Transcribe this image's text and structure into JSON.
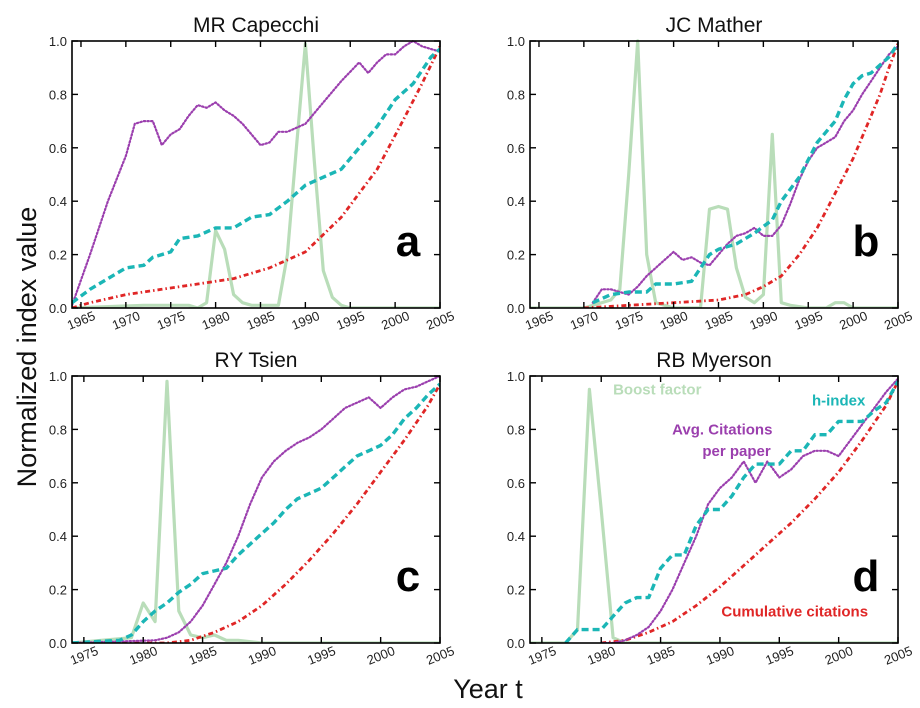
{
  "figure": {
    "ylabel": "Normalized index value",
    "xlabel": "Year t"
  },
  "colors": {
    "boost": "#b9ddb9",
    "hindex": "#1bb6b6",
    "avgcit": "#9b3fae",
    "cumcit": "#e02626"
  },
  "chart_data": [
    {
      "type": "line",
      "title": "MR Capecchi",
      "panel_label": "a",
      "xlim": [
        1964,
        2005
      ],
      "ylim": [
        0,
        1
      ],
      "xticks": [
        1965,
        1970,
        1975,
        1980,
        1985,
        1990,
        1995,
        2000,
        2005
      ],
      "yticks": [
        "0.0",
        "0.2",
        "0.4",
        "0.6",
        "0.8",
        "1.0"
      ],
      "series": [
        {
          "key": "boost",
          "style": "solid",
          "x": [
            1964,
            1972,
            1975,
            1977,
            1978,
            1979,
            1980,
            1981,
            1982,
            1983,
            1984,
            1985,
            1986,
            1987,
            1988,
            1989,
            1990,
            1991,
            1992,
            1993,
            1994,
            1995,
            2005
          ],
          "y": [
            0,
            0.01,
            0.01,
            0.01,
            0,
            0.02,
            0.29,
            0.22,
            0.05,
            0.02,
            0.01,
            0.01,
            0.01,
            0.01,
            0.2,
            0.6,
            0.99,
            0.55,
            0.14,
            0.04,
            0.01,
            0,
            0
          ]
        },
        {
          "key": "hindex",
          "style": "dashed",
          "x": [
            1964,
            1966,
            1968,
            1970,
            1972,
            1973,
            1975,
            1976,
            1978,
            1980,
            1982,
            1984,
            1986,
            1988,
            1990,
            1992,
            1994,
            1996,
            1998,
            2000,
            2002,
            2003,
            2004,
            2005
          ],
          "y": [
            0.02,
            0.07,
            0.11,
            0.15,
            0.16,
            0.19,
            0.21,
            0.26,
            0.27,
            0.3,
            0.3,
            0.34,
            0.35,
            0.4,
            0.46,
            0.49,
            0.52,
            0.6,
            0.68,
            0.78,
            0.84,
            0.89,
            0.94,
            0.97
          ]
        },
        {
          "key": "avgcit",
          "style": "dotted",
          "x": [
            1964,
            1966,
            1968,
            1970,
            1971,
            1972,
            1973,
            1974,
            1975,
            1976,
            1977,
            1978,
            1979,
            1980,
            1981,
            1982,
            1983,
            1984,
            1985,
            1986,
            1987,
            1988,
            1990,
            1992,
            1994,
            1996,
            1997,
            1998,
            1999,
            2000,
            2001,
            2002,
            2003,
            2004,
            2005
          ],
          "y": [
            0.01,
            0.2,
            0.4,
            0.57,
            0.69,
            0.7,
            0.7,
            0.61,
            0.65,
            0.67,
            0.72,
            0.76,
            0.75,
            0.77,
            0.74,
            0.72,
            0.69,
            0.65,
            0.61,
            0.62,
            0.66,
            0.66,
            0.69,
            0.77,
            0.85,
            0.92,
            0.88,
            0.92,
            0.95,
            0.95,
            0.98,
            1.0,
            0.98,
            0.97,
            0.96
          ]
        },
        {
          "key": "cumcit",
          "style": "dashdot",
          "x": [
            1964,
            1966,
            1970,
            1974,
            1978,
            1982,
            1986,
            1990,
            1994,
            1998,
            2001,
            2003,
            2005
          ],
          "y": [
            0,
            0.02,
            0.05,
            0.07,
            0.09,
            0.11,
            0.15,
            0.21,
            0.34,
            0.52,
            0.71,
            0.84,
            0.98
          ]
        }
      ]
    },
    {
      "type": "line",
      "title": "JC Mather",
      "panel_label": "b",
      "xlim": [
        1964,
        2005
      ],
      "ylim": [
        0,
        1
      ],
      "xticks": [
        1965,
        1970,
        1975,
        1980,
        1985,
        1990,
        1995,
        2000,
        2005
      ],
      "yticks": [
        "0.0",
        "0.2",
        "0.4",
        "0.6",
        "0.8",
        "1.0"
      ],
      "series": [
        {
          "key": "boost",
          "style": "solid",
          "x": [
            1964,
            1970,
            1973,
            1974,
            1975,
            1976,
            1977,
            1978,
            1980,
            1983,
            1984,
            1985,
            1986,
            1987,
            1988,
            1989,
            1990,
            1991,
            1992,
            1993,
            1995,
            1997,
            1998,
            1999,
            2000,
            2005
          ],
          "y": [
            0,
            0,
            0.03,
            0.07,
            0.5,
            1.0,
            0.2,
            0.02,
            0,
            0,
            0.37,
            0.38,
            0.37,
            0.15,
            0.04,
            0.02,
            0.05,
            0.65,
            0.02,
            0.01,
            0,
            0,
            0.02,
            0.02,
            0,
            0
          ]
        },
        {
          "key": "hindex",
          "style": "dashed",
          "x": [
            1971,
            1973,
            1975,
            1977,
            1978,
            1980,
            1982,
            1984,
            1985,
            1987,
            1989,
            1991,
            1992,
            1994,
            1996,
            1998,
            1999,
            2000,
            2001,
            2002,
            2004,
            2005
          ],
          "y": [
            0.02,
            0.05,
            0.06,
            0.06,
            0.09,
            0.09,
            0.1,
            0.2,
            0.22,
            0.24,
            0.28,
            0.33,
            0.4,
            0.49,
            0.62,
            0.7,
            0.78,
            0.84,
            0.87,
            0.88,
            0.94,
            0.99
          ]
        },
        {
          "key": "avgcit",
          "style": "dotted",
          "x": [
            1971,
            1972,
            1973,
            1974,
            1975,
            1976,
            1977,
            1978,
            1979,
            1980,
            1981,
            1982,
            1983,
            1984,
            1985,
            1986,
            1987,
            1988,
            1989,
            1990,
            1991,
            1992,
            1993,
            1994,
            1995,
            1996,
            1997,
            1998,
            1999,
            2000,
            2001,
            2002,
            2003,
            2004,
            2005
          ],
          "y": [
            0.02,
            0.07,
            0.07,
            0.06,
            0.05,
            0.08,
            0.12,
            0.15,
            0.18,
            0.21,
            0.18,
            0.19,
            0.17,
            0.16,
            0.2,
            0.24,
            0.27,
            0.28,
            0.3,
            0.27,
            0.27,
            0.31,
            0.39,
            0.48,
            0.55,
            0.6,
            0.62,
            0.64,
            0.7,
            0.74,
            0.8,
            0.85,
            0.9,
            0.95,
            0.98
          ]
        },
        {
          "key": "cumcit",
          "style": "dashdot",
          "x": [
            1970,
            1975,
            1980,
            1985,
            1988,
            1990,
            1992,
            1994,
            1996,
            1998,
            2000,
            2002,
            2003,
            2004,
            2005
          ],
          "y": [
            0,
            0.01,
            0.02,
            0.03,
            0.05,
            0.08,
            0.12,
            0.2,
            0.3,
            0.43,
            0.56,
            0.72,
            0.8,
            0.9,
            0.99
          ]
        }
      ]
    },
    {
      "type": "line",
      "title": "RY Tsien",
      "panel_label": "c",
      "xlim": [
        1974,
        2005
      ],
      "ylim": [
        0,
        1
      ],
      "xticks": [
        1975,
        1980,
        1985,
        1990,
        1995,
        2000,
        2005
      ],
      "yticks": [
        "0.0",
        "0.2",
        "0.4",
        "0.6",
        "0.8",
        "1.0"
      ],
      "series": [
        {
          "key": "boost",
          "style": "solid",
          "x": [
            1974,
            1979,
            1980,
            1981,
            1982,
            1983,
            1984,
            1985,
            1986,
            1987,
            1988,
            1990,
            2005
          ],
          "y": [
            0,
            0.02,
            0.15,
            0.08,
            0.98,
            0.12,
            0.03,
            0.02,
            0.03,
            0.01,
            0.01,
            0,
            0
          ]
        },
        {
          "key": "hindex",
          "style": "dashed",
          "x": [
            1974,
            1978,
            1979,
            1980,
            1981,
            1982,
            1983,
            1984,
            1985,
            1986,
            1987,
            1988,
            1989,
            1990,
            1991,
            1992,
            1993,
            1994,
            1995,
            1996,
            1997,
            1998,
            1999,
            2000,
            2001,
            2002,
            2003,
            2004,
            2005
          ],
          "y": [
            0,
            0.01,
            0.03,
            0.08,
            0.12,
            0.15,
            0.19,
            0.22,
            0.26,
            0.27,
            0.28,
            0.33,
            0.37,
            0.41,
            0.45,
            0.5,
            0.54,
            0.56,
            0.58,
            0.62,
            0.66,
            0.7,
            0.72,
            0.74,
            0.78,
            0.84,
            0.88,
            0.93,
            0.97
          ]
        },
        {
          "key": "avgcit",
          "style": "dotted",
          "x": [
            1974,
            1981,
            1982,
            1983,
            1984,
            1985,
            1986,
            1987,
            1988,
            1989,
            1990,
            1991,
            1992,
            1993,
            1994,
            1995,
            1996,
            1997,
            1998,
            1999,
            2000,
            2001,
            2002,
            2003,
            2004,
            2005
          ],
          "y": [
            0,
            0.01,
            0.02,
            0.04,
            0.08,
            0.14,
            0.22,
            0.3,
            0.4,
            0.52,
            0.62,
            0.68,
            0.72,
            0.75,
            0.77,
            0.8,
            0.84,
            0.88,
            0.9,
            0.92,
            0.88,
            0.92,
            0.95,
            0.96,
            0.98,
            1.0
          ]
        },
        {
          "key": "cumcit",
          "style": "dashdot",
          "x": [
            1974,
            1982,
            1984,
            1986,
            1988,
            1990,
            1992,
            1994,
            1996,
            1998,
            2000,
            2002,
            2004,
            2005
          ],
          "y": [
            0,
            0,
            0.01,
            0.04,
            0.08,
            0.14,
            0.22,
            0.31,
            0.41,
            0.52,
            0.64,
            0.76,
            0.89,
            0.97
          ]
        }
      ]
    },
    {
      "type": "line",
      "title": "RB Myerson",
      "panel_label": "d",
      "xlim": [
        1974,
        2005
      ],
      "ylim": [
        0,
        1
      ],
      "xticks": [
        1975,
        1980,
        1985,
        1990,
        1995,
        2000,
        2005
      ],
      "yticks": [
        "0.0",
        "0.2",
        "0.4",
        "0.6",
        "0.8",
        "1.0"
      ],
      "annotations": [
        {
          "key": "boost",
          "text": "Boost factor",
          "x": 1981.0,
          "y": 0.93,
          "anchor": "start"
        },
        {
          "key": "hindex",
          "text": "h-index",
          "x": 2000.0,
          "y": 0.89,
          "anchor": "middle"
        },
        {
          "key": "avgcit",
          "text": "Avg. Citations",
          "x": 1990.2,
          "y": 0.78,
          "anchor": "middle"
        },
        {
          "key": "avgcit",
          "text": "per paper",
          "x": 1991.4,
          "y": 0.7,
          "anchor": "middle"
        },
        {
          "key": "cumcit",
          "text": "Cumulative citations",
          "x": 1996.3,
          "y": 0.1,
          "anchor": "middle"
        }
      ],
      "series": [
        {
          "key": "boost",
          "style": "solid",
          "x": [
            1974,
            1977,
            1978,
            1979,
            1980,
            1981,
            1982,
            2005
          ],
          "y": [
            0,
            0,
            0.05,
            0.95,
            0.5,
            0.02,
            0,
            0
          ]
        },
        {
          "key": "hindex",
          "style": "dashed",
          "x": [
            1977,
            1978,
            1979,
            1980,
            1981,
            1982,
            1983,
            1984,
            1985,
            1986,
            1987,
            1988,
            1989,
            1990,
            1991,
            1992,
            1993,
            1994,
            1995,
            1996,
            1997,
            1998,
            1999,
            2000,
            2001,
            2002,
            2003,
            2004,
            2005
          ],
          "y": [
            0,
            0.05,
            0.05,
            0.05,
            0.1,
            0.15,
            0.17,
            0.17,
            0.28,
            0.33,
            0.33,
            0.44,
            0.5,
            0.5,
            0.55,
            0.62,
            0.67,
            0.67,
            0.67,
            0.72,
            0.72,
            0.78,
            0.78,
            0.83,
            0.83,
            0.83,
            0.87,
            0.9,
            0.98
          ]
        },
        {
          "key": "avgcit",
          "style": "dotted",
          "x": [
            1980,
            1981,
            1982,
            1983,
            1984,
            1985,
            1986,
            1987,
            1988,
            1989,
            1990,
            1991,
            1992,
            1993,
            1994,
            1995,
            1996,
            1997,
            1998,
            1999,
            2000,
            2001,
            2002,
            2003,
            2004,
            2005
          ],
          "y": [
            0,
            0,
            0.01,
            0.03,
            0.06,
            0.12,
            0.2,
            0.3,
            0.4,
            0.52,
            0.58,
            0.62,
            0.68,
            0.6,
            0.68,
            0.62,
            0.65,
            0.7,
            0.72,
            0.72,
            0.7,
            0.76,
            0.82,
            0.88,
            0.94,
            0.99
          ]
        },
        {
          "key": "cumcit",
          "style": "dashdot",
          "x": [
            1980,
            1982,
            1984,
            1986,
            1988,
            1990,
            1992,
            1994,
            1996,
            1998,
            2000,
            2002,
            2004,
            2005
          ],
          "y": [
            0,
            0.01,
            0.04,
            0.08,
            0.14,
            0.21,
            0.29,
            0.37,
            0.45,
            0.54,
            0.64,
            0.76,
            0.89,
            0.98
          ]
        }
      ]
    }
  ]
}
